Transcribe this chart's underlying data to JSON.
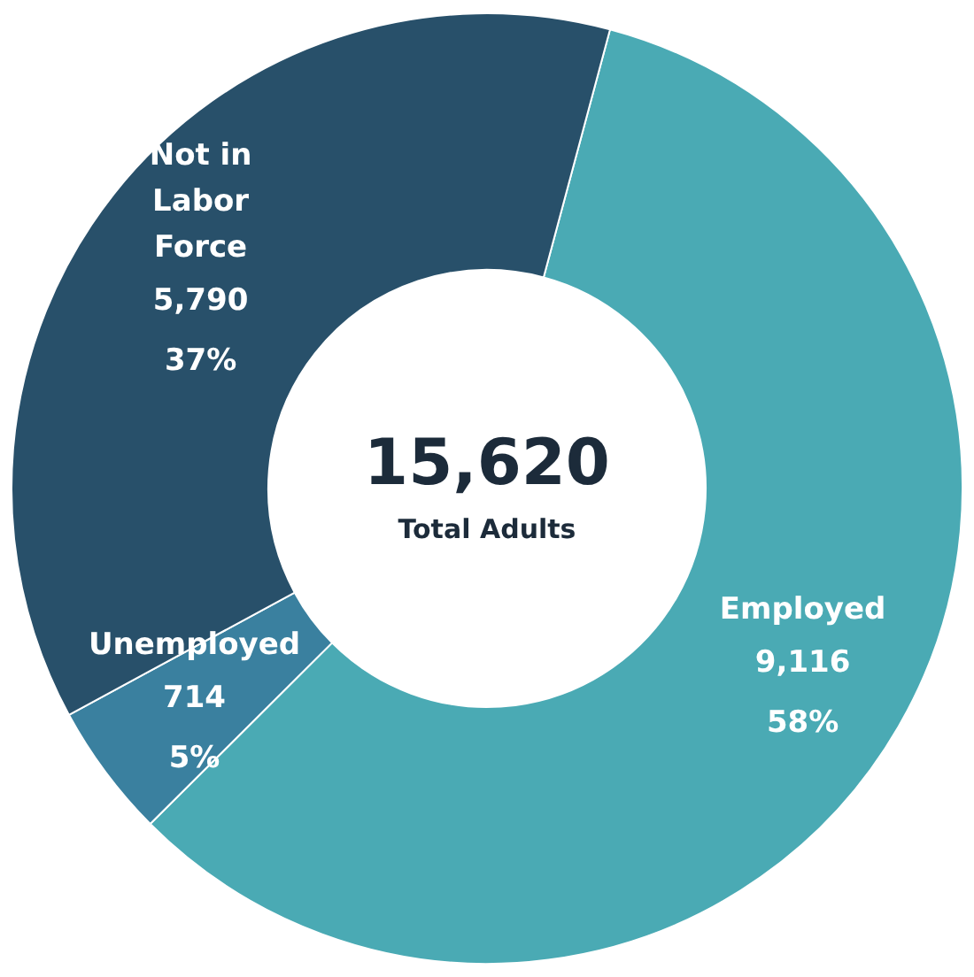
{
  "chart_data": {
    "type": "donut",
    "categories": [
      "Employed",
      "Unemployed",
      "Not in Labor Force"
    ],
    "values": [
      9116,
      714,
      5790
    ],
    "colors": [
      "#4aaab4",
      "#3a809f",
      "#28506a"
    ],
    "value_labels": [
      "9,116\n58%",
      "714\n5%",
      "5,790\n37%"
    ],
    "annotations": [
      "15,620",
      "Total Adults"
    ]
  }
}
